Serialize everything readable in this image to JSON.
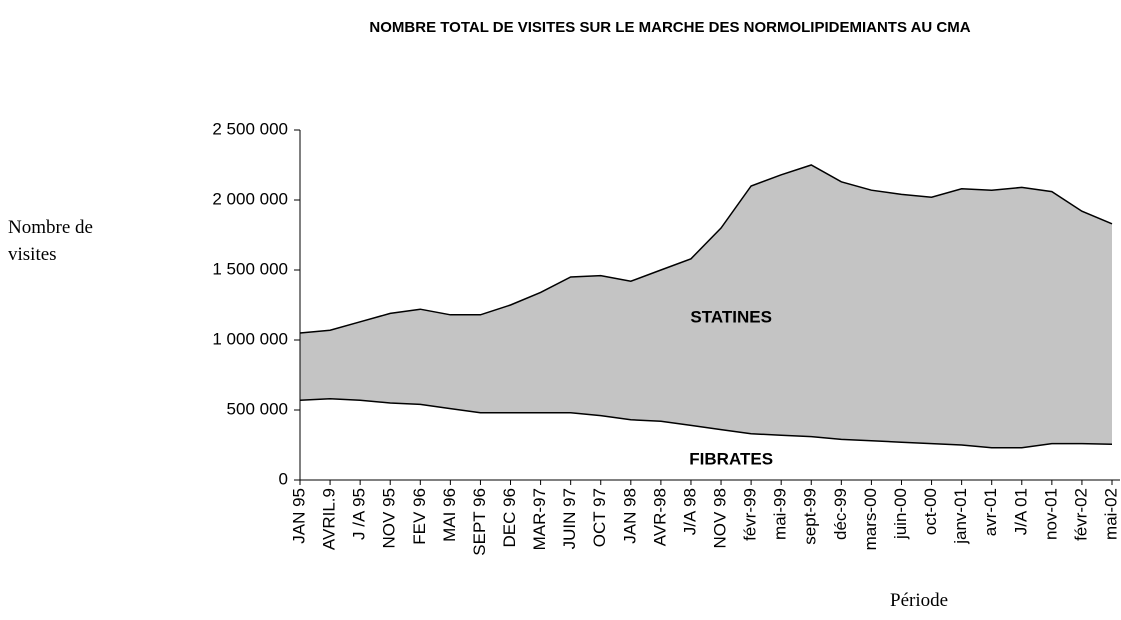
{
  "chart_data": {
    "type": "stacked_area",
    "title": "NOMBRE TOTAL DE VISITES SUR LE MARCHE DES NORMOLIPIDEMIANTS AU CMA",
    "y_label": "Nombre de visites",
    "x_label": "Période",
    "categories": [
      "JAN 95",
      "AVRIL.9",
      "J /A 95",
      "NOV 95",
      "FEV 96",
      "MAI 96",
      "SEPT 96",
      "DEC 96",
      "MAR-97",
      "JUIN 97",
      "OCT 97",
      "JAN 98",
      "AVR-98",
      "J/A 98",
      "NOV 98",
      "févr-99",
      "mai-99",
      "sept-99",
      "déc-99",
      "mars-00",
      "juin-00",
      "oct-00",
      "janv-01",
      "avr-01",
      "J/A 01",
      "nov-01",
      "févr-02",
      "mai-02"
    ],
    "series": [
      {
        "name": "FIBRATES",
        "color": "#ffffff",
        "values": [
          570000,
          580000,
          570000,
          550000,
          540000,
          510000,
          480000,
          480000,
          480000,
          480000,
          460000,
          430000,
          420000,
          390000,
          360000,
          330000,
          320000,
          310000,
          290000,
          280000,
          270000,
          260000,
          250000,
          230000,
          230000,
          260000,
          260000,
          255000
        ]
      },
      {
        "name": "STATINES",
        "color": "#c4c4c4",
        "values": [
          480000,
          490000,
          560000,
          640000,
          680000,
          670000,
          700000,
          770000,
          860000,
          970000,
          1000000,
          990000,
          1080000,
          1190000,
          1440000,
          1770000,
          1860000,
          1940000,
          1840000,
          1790000,
          1770000,
          1760000,
          1830000,
          1840000,
          1860000,
          1800000,
          1660000,
          1575000
        ]
      }
    ],
    "ylim": [
      0,
      2500000
    ],
    "yticks": [
      0,
      {
        "value": 500000,
        "label": "500 000"
      },
      {
        "value": 1000000,
        "label": "1 000 000"
      },
      {
        "value": 1500000,
        "label": "1 500 000"
      },
      {
        "value": 2000000,
        "label": "2 000 000"
      },
      {
        "value": 2500000,
        "label": "2 500 000"
      }
    ]
  }
}
